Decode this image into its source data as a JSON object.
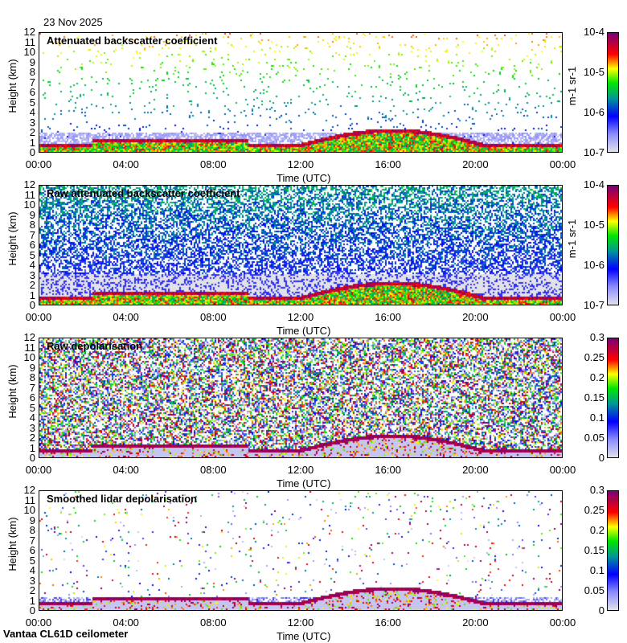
{
  "date": "23 Nov 2025",
  "footer": "Vantaa CL61D ceilometer",
  "colors": {
    "low": "#d8d8e0",
    "blue": "#0000ff",
    "green": "#00e000",
    "yellow": "#ffff00",
    "red": "#ff0000",
    "high": "#800080"
  },
  "chart_data": [
    {
      "type": "heatmap",
      "title": "Attenuated backscatter coefficient",
      "ylabel": "Height (km)",
      "xlabel": "Time (UTC)",
      "yticks": [
        "0",
        "1",
        "2",
        "3",
        "4",
        "5",
        "6",
        "7",
        "8",
        "9",
        "10",
        "11",
        "12"
      ],
      "ylim": [
        0,
        12
      ],
      "xticks": [
        "00:00",
        "04:00",
        "08:00",
        "12:00",
        "16:00",
        "20:00",
        "00:00"
      ],
      "colorbar": {
        "scale": "log",
        "ticks": [
          "10-7",
          "10-6",
          "10-5",
          "10-4"
        ],
        "unit": "m-1 sr-1",
        "range": [
          1e-07,
          0.0001
        ]
      }
    },
    {
      "type": "heatmap",
      "title": "Raw attenuated backscatter coefficient",
      "ylabel": "Height (km)",
      "xlabel": "Time (UTC)",
      "yticks": [
        "0",
        "1",
        "2",
        "3",
        "4",
        "5",
        "6",
        "7",
        "8",
        "9",
        "10",
        "11",
        "12"
      ],
      "ylim": [
        0,
        12
      ],
      "xticks": [
        "00:00",
        "04:00",
        "08:00",
        "12:00",
        "16:00",
        "20:00",
        "00:00"
      ],
      "colorbar": {
        "scale": "log",
        "ticks": [
          "10-7",
          "10-6",
          "10-5",
          "10-4"
        ],
        "unit": "m-1 sr-1",
        "range": [
          1e-07,
          0.0001
        ]
      }
    },
    {
      "type": "heatmap",
      "title": "Raw depolarisation",
      "ylabel": "Height (km)",
      "xlabel": "Time (UTC)",
      "yticks": [
        "0",
        "1",
        "2",
        "3",
        "4",
        "5",
        "6",
        "7",
        "8",
        "9",
        "10",
        "11",
        "12"
      ],
      "ylim": [
        0,
        12
      ],
      "xticks": [
        "00:00",
        "04:00",
        "08:00",
        "12:00",
        "16:00",
        "20:00",
        "00:00"
      ],
      "colorbar": {
        "scale": "linear",
        "ticks": [
          "0",
          "0.05",
          "0.1",
          "0.15",
          "0.2",
          "0.25",
          "0.3"
        ],
        "unit": "",
        "range": [
          0,
          0.3
        ]
      }
    },
    {
      "type": "heatmap",
      "title": "Smoothed lidar depolarisation",
      "ylabel": "Height (km)",
      "xlabel": "Time (UTC)",
      "yticks": [
        "0",
        "1",
        "2",
        "3",
        "4",
        "5",
        "6",
        "7",
        "8",
        "9",
        "10",
        "11",
        "12"
      ],
      "ylim": [
        0,
        12
      ],
      "xticks": [
        "00:00",
        "04:00",
        "08:00",
        "12:00",
        "16:00",
        "20:00",
        "00:00"
      ],
      "colorbar": {
        "scale": "linear",
        "ticks": [
          "0",
          "0.05",
          "0.1",
          "0.15",
          "0.2",
          "0.25",
          "0.3"
        ],
        "unit": "",
        "range": [
          0,
          0.3
        ]
      }
    }
  ]
}
